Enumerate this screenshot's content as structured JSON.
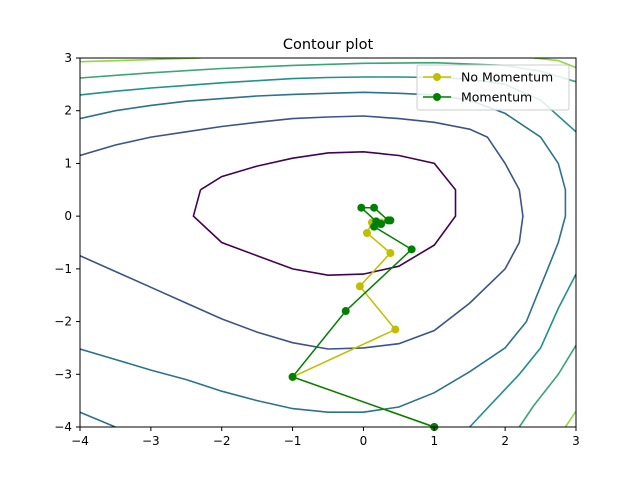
{
  "chart_data": {
    "type": "line",
    "title": "Contour plot",
    "xlabel": "",
    "ylabel": "",
    "xlim": [
      -4,
      3
    ],
    "ylim": [
      -4,
      3
    ],
    "x_ticks": [
      -4,
      -3,
      -2,
      -1,
      0,
      1,
      2,
      3
    ],
    "y_ticks": [
      -4,
      -3,
      -2,
      -1,
      0,
      1,
      2,
      3
    ],
    "grid": false,
    "legend_position": "top-right",
    "contours": [
      {
        "color": "#440154",
        "points": [
          [
            -2.3,
            0.5
          ],
          [
            -2.0,
            0.75
          ],
          [
            -1.5,
            0.95
          ],
          [
            -1.0,
            1.1
          ],
          [
            -0.5,
            1.2
          ],
          [
            0.0,
            1.22
          ],
          [
            0.5,
            1.15
          ],
          [
            1.0,
            1.0
          ],
          [
            1.3,
            0.5
          ],
          [
            1.3,
            0.0
          ],
          [
            1.0,
            -0.55
          ],
          [
            0.5,
            -0.95
          ],
          [
            0.0,
            -1.1
          ],
          [
            -0.5,
            -1.12
          ],
          [
            -1.0,
            -1.0
          ],
          [
            -1.5,
            -0.75
          ],
          [
            -2.0,
            -0.5
          ],
          [
            -2.4,
            0.0
          ],
          [
            -2.3,
            0.5
          ]
        ]
      },
      {
        "color": "#3b528b",
        "points": [
          [
            -4.0,
            1.15
          ],
          [
            -3.5,
            1.35
          ],
          [
            -3.0,
            1.5
          ],
          [
            -2.5,
            1.6
          ],
          [
            -2.0,
            1.7
          ],
          [
            -1.5,
            1.78
          ],
          [
            -1.0,
            1.85
          ],
          [
            -0.5,
            1.88
          ],
          [
            0.0,
            1.9
          ],
          [
            0.5,
            1.85
          ],
          [
            1.0,
            1.78
          ],
          [
            1.5,
            1.65
          ],
          [
            1.75,
            1.5
          ],
          [
            2.0,
            1.0
          ],
          [
            2.2,
            0.5
          ],
          [
            2.25,
            0.0
          ],
          [
            2.2,
            -0.5
          ],
          [
            2.0,
            -1.0
          ],
          [
            1.5,
            -1.65
          ],
          [
            1.0,
            -2.17
          ],
          [
            0.5,
            -2.42
          ],
          [
            0.0,
            -2.5
          ],
          [
            -0.5,
            -2.52
          ],
          [
            -1.0,
            -2.4
          ],
          [
            -1.5,
            -2.2
          ],
          [
            -2.0,
            -1.95
          ],
          [
            -2.5,
            -1.65
          ],
          [
            -3.0,
            -1.35
          ],
          [
            -3.5,
            -1.05
          ],
          [
            -4.0,
            -0.75
          ]
        ]
      },
      {
        "color": "#2c728e",
        "points": [
          [
            -4.0,
            1.85
          ],
          [
            -3.5,
            2.0
          ],
          [
            -3.0,
            2.1
          ],
          [
            -2.5,
            2.18
          ],
          [
            -2.0,
            2.23
          ],
          [
            -1.5,
            2.28
          ],
          [
            -1.0,
            2.31
          ],
          [
            -0.5,
            2.33
          ],
          [
            0.0,
            2.35
          ],
          [
            0.5,
            2.33
          ],
          [
            1.0,
            2.3
          ],
          [
            1.5,
            2.2
          ],
          [
            2.0,
            1.95
          ],
          [
            2.5,
            1.5
          ],
          [
            2.75,
            1.0
          ],
          [
            2.85,
            0.5
          ],
          [
            2.85,
            0.0
          ],
          [
            2.75,
            -0.5
          ],
          [
            2.6,
            -1.0
          ],
          [
            2.45,
            -1.5
          ],
          [
            2.3,
            -2.0
          ],
          [
            2.0,
            -2.5
          ],
          [
            1.5,
            -2.95
          ],
          [
            1.0,
            -3.35
          ],
          [
            0.5,
            -3.62
          ],
          [
            0.0,
            -3.72
          ],
          [
            -0.5,
            -3.72
          ],
          [
            -1.0,
            -3.65
          ],
          [
            -1.5,
            -3.5
          ],
          [
            -2.0,
            -3.32
          ],
          [
            -2.5,
            -3.1
          ],
          [
            -3.0,
            -2.92
          ],
          [
            -3.5,
            -2.72
          ],
          [
            -4.0,
            -2.52
          ]
        ]
      },
      {
        "color": "#21918c",
        "points": [
          [
            -4.0,
            2.3
          ],
          [
            -3.5,
            2.37
          ],
          [
            -3.0,
            2.43
          ],
          [
            -2.5,
            2.48
          ],
          [
            -2.0,
            2.53
          ],
          [
            -1.5,
            2.57
          ],
          [
            -1.0,
            2.61
          ],
          [
            -0.5,
            2.63
          ],
          [
            0.0,
            2.64
          ],
          [
            0.5,
            2.64
          ],
          [
            1.0,
            2.63
          ],
          [
            1.5,
            2.6
          ],
          [
            2.0,
            2.5
          ],
          [
            2.5,
            2.2
          ],
          [
            3.0,
            1.6
          ]
        ]
      },
      {
        "color": "#21918c",
        "points": [
          [
            3.0,
            -1.1
          ],
          [
            2.75,
            -1.75
          ],
          [
            2.5,
            -2.5
          ],
          [
            2.2,
            -3.0
          ],
          [
            1.85,
            -3.5
          ],
          [
            1.5,
            -4.0
          ]
        ]
      },
      {
        "color": "#2c728e",
        "points": [
          [
            -4.0,
            -3.72
          ],
          [
            -3.5,
            -4.0
          ]
        ]
      },
      {
        "color": "#3aa575",
        "points": [
          [
            -4.0,
            2.62
          ],
          [
            -3.0,
            2.72
          ],
          [
            -2.0,
            2.8
          ],
          [
            -1.0,
            2.86
          ],
          [
            0.0,
            2.9
          ],
          [
            1.0,
            2.91
          ],
          [
            2.0,
            2.86
          ],
          [
            2.5,
            2.75
          ],
          [
            3.0,
            2.55
          ]
        ]
      },
      {
        "color": "#3aa575",
        "points": [
          [
            3.0,
            -2.45
          ],
          [
            2.75,
            -3.0
          ],
          [
            2.4,
            -3.6
          ],
          [
            2.2,
            -4.0
          ]
        ]
      },
      {
        "color": "#90d743",
        "points": [
          [
            -4.0,
            2.93
          ],
          [
            -3.0,
            2.97
          ],
          [
            -2.3,
            3.0
          ]
        ]
      },
      {
        "color": "#90d743",
        "points": [
          [
            2.4,
            3.0
          ],
          [
            2.75,
            2.95
          ],
          [
            3.0,
            2.82
          ]
        ]
      },
      {
        "color": "#90d743",
        "points": [
          [
            3.0,
            -3.7
          ],
          [
            2.85,
            -4.0
          ]
        ]
      }
    ],
    "series": [
      {
        "name": "No Momentum",
        "color": "#bfbf00",
        "points": [
          [
            1.0,
            -4.0
          ],
          [
            -1.0,
            -3.05
          ],
          [
            0.45,
            -2.15
          ],
          [
            -0.05,
            -1.33
          ],
          [
            0.38,
            -0.7
          ],
          [
            0.05,
            -0.32
          ],
          [
            0.12,
            -0.12
          ],
          [
            0.25,
            -0.12
          ],
          [
            0.22,
            -0.15
          ]
        ]
      },
      {
        "name": "Momentum",
        "color": "#008000",
        "points": [
          [
            1.0,
            -4.0
          ],
          [
            -1.0,
            -3.05
          ],
          [
            -0.25,
            -1.8
          ],
          [
            0.68,
            -0.63
          ],
          [
            0.15,
            -0.2
          ],
          [
            0.35,
            -0.08
          ],
          [
            0.15,
            0.16
          ],
          [
            -0.03,
            0.16
          ],
          [
            0.18,
            -0.1
          ],
          [
            0.25,
            -0.15
          ],
          [
            0.38,
            -0.08
          ]
        ]
      }
    ]
  }
}
